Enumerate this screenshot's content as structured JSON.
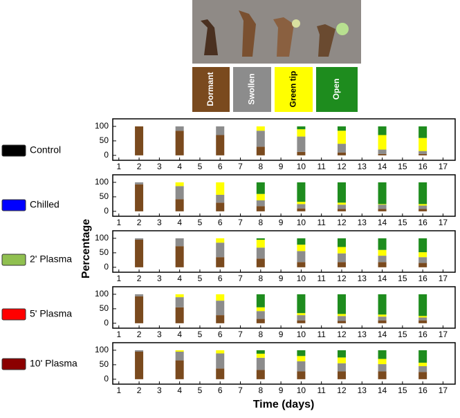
{
  "chart_data": {
    "type": "bar",
    "stacked": true,
    "y_label": "Percentage",
    "x_label": "Time (days)",
    "stages": [
      {
        "name": "Dormant",
        "color": "#7a4a1e"
      },
      {
        "name": "Swollen",
        "color": "#8c8c8c"
      },
      {
        "name": "Green tip",
        "color": "#ffff00"
      },
      {
        "name": "Open",
        "color": "#1e8c1e"
      }
    ],
    "x": [
      2,
      4,
      6,
      8,
      10,
      12,
      14,
      16
    ],
    "xlim": [
      0.7,
      17.6
    ],
    "xticks": [
      1,
      2,
      3,
      4,
      5,
      6,
      7,
      8,
      9,
      10,
      11,
      12,
      13,
      14,
      15,
      16,
      17
    ],
    "ylim": [
      -17,
      126
    ],
    "yticks": [
      0,
      50,
      100
    ],
    "panels": [
      {
        "name": "Control",
        "color": "#000000",
        "series": [
          {
            "values": [
              100,
              85,
              70,
              30,
              12,
              10,
              5,
              5
            ]
          },
          {
            "values": [
              0,
              15,
              30,
              55,
              53,
              30,
              15,
              10
            ]
          },
          {
            "values": [
              0,
              0,
              0,
              15,
              25,
              45,
              50,
              45
            ]
          },
          {
            "values": [
              0,
              0,
              0,
              0,
              10,
              15,
              30,
              40
            ]
          }
        ]
      },
      {
        "name": "Chilled",
        "color": "#0000ff",
        "series": [
          {
            "values": [
              93,
              42,
              30,
              18,
              10,
              8,
              8,
              8
            ]
          },
          {
            "values": [
              7,
              45,
              27,
              20,
              15,
              15,
              15,
              12
            ]
          },
          {
            "values": [
              0,
              13,
              43,
              22,
              8,
              7,
              2,
              5
            ]
          },
          {
            "values": [
              0,
              0,
              0,
              40,
              67,
              70,
              75,
              75
            ]
          }
        ]
      },
      {
        "name": "2' Plasma",
        "color": "#90c050",
        "series": [
          {
            "values": [
              95,
              73,
              35,
              30,
              18,
              18,
              18,
              15
            ]
          },
          {
            "values": [
              5,
              27,
              50,
              38,
              38,
              30,
              22,
              20
            ]
          },
          {
            "values": [
              0,
              0,
              15,
              27,
              22,
              22,
              20,
              17
            ]
          },
          {
            "values": [
              0,
              0,
              0,
              5,
              22,
              30,
              40,
              48
            ]
          }
        ]
      },
      {
        "name": "5' Plasma",
        "color": "#ff0000",
        "series": [
          {
            "values": [
              93,
              55,
              28,
              15,
              10,
              8,
              10,
              10
            ]
          },
          {
            "values": [
              7,
              35,
              50,
              27,
              18,
              17,
              13,
              10
            ]
          },
          {
            "values": [
              0,
              10,
              22,
              13,
              7,
              7,
              7,
              5
            ]
          },
          {
            "values": [
              0,
              0,
              0,
              45,
              65,
              68,
              70,
              75
            ]
          }
        ]
      },
      {
        "name": "10' Plasma",
        "color": "#8b0000",
        "series": [
          {
            "values": [
              95,
              65,
              37,
              32,
              27,
              27,
              27,
              25
            ]
          },
          {
            "values": [
              5,
              30,
              52,
              42,
              35,
              28,
              25,
              20
            ]
          },
          {
            "values": [
              0,
              5,
              11,
              14,
              18,
              20,
              18,
              12
            ]
          },
          {
            "values": [
              0,
              0,
              0,
              12,
              20,
              25,
              30,
              43
            ]
          }
        ]
      }
    ]
  }
}
